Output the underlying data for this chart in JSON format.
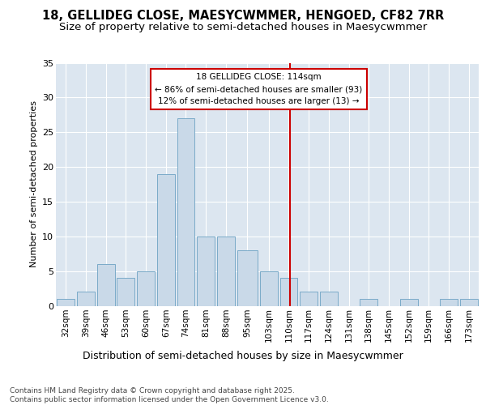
{
  "title_line1": "18, GELLIDEG CLOSE, MAESYCWMMER, HENGOED, CF82 7RR",
  "title_line2": "Size of property relative to semi-detached houses in Maesycwmmer",
  "xlabel": "Distribution of semi-detached houses by size in Maesycwmmer",
  "ylabel": "Number of semi-detached properties",
  "footer": "Contains HM Land Registry data © Crown copyright and database right 2025.\nContains public sector information licensed under the Open Government Licence v3.0.",
  "bin_labels": [
    "32sqm",
    "39sqm",
    "46sqm",
    "53sqm",
    "60sqm",
    "67sqm",
    "74sqm",
    "81sqm",
    "88sqm",
    "95sqm",
    "103sqm",
    "110sqm",
    "117sqm",
    "124sqm",
    "131sqm",
    "138sqm",
    "145sqm",
    "152sqm",
    "159sqm",
    "166sqm",
    "173sqm"
  ],
  "bin_edges": [
    32,
    39,
    46,
    53,
    60,
    67,
    74,
    81,
    88,
    95,
    103,
    110,
    117,
    124,
    131,
    138,
    145,
    152,
    159,
    166,
    173,
    180
  ],
  "bar_heights": [
    1,
    2,
    6,
    4,
    5,
    19,
    27,
    10,
    10,
    8,
    5,
    4,
    2,
    2,
    0,
    1,
    0,
    1,
    0,
    1,
    1
  ],
  "bar_color": "#c9d9e8",
  "bar_edge_color": "#7aaac8",
  "property_size": 114,
  "vline_color": "#cc0000",
  "annotation_title": "18 GELLIDEG CLOSE: 114sqm",
  "annotation_line1": "← 86% of semi-detached houses are smaller (93)",
  "annotation_line2": "12% of semi-detached houses are larger (13) →",
  "box_edge_color": "#cc0000",
  "ylim": [
    0,
    35
  ],
  "yticks": [
    0,
    5,
    10,
    15,
    20,
    25,
    30,
    35
  ],
  "background_color": "#dce6f0",
  "fig_background": "#ffffff",
  "grid_color": "#ffffff",
  "title_fontsize": 10.5,
  "subtitle_fontsize": 9.5,
  "annotation_fontsize": 7.5,
  "ylabel_fontsize": 8,
  "xlabel_fontsize": 9,
  "tick_fontsize": 7.5,
  "footer_fontsize": 6.5
}
